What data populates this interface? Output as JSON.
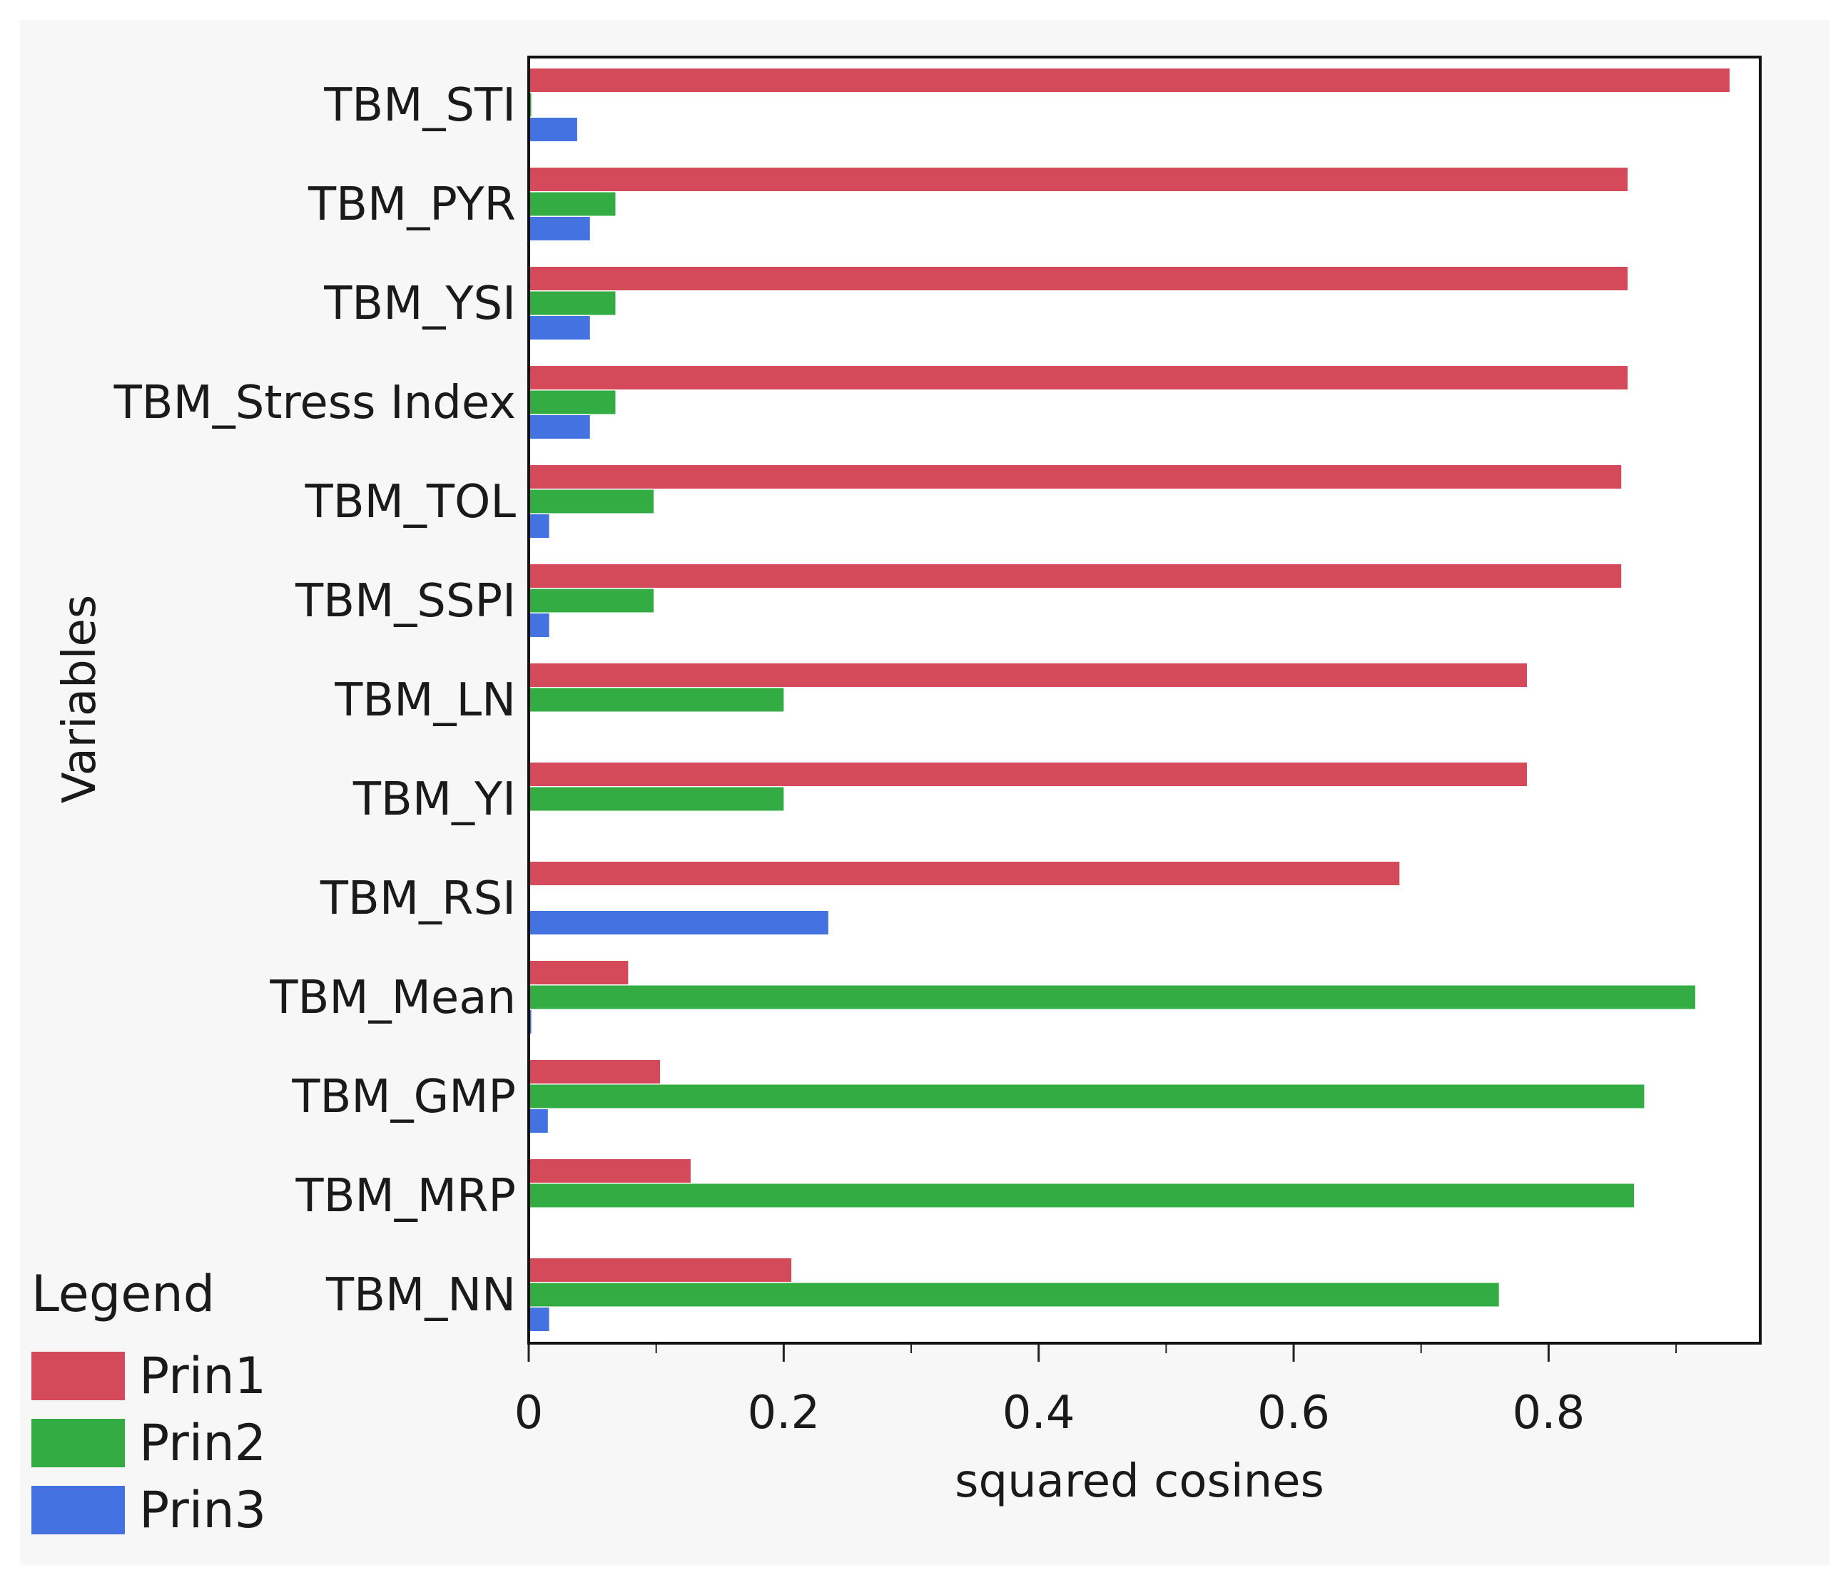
{
  "chart_data": {
    "type": "bar",
    "orientation": "horizontal",
    "title": "",
    "xlabel": "squared cosines",
    "ylabel": "Variables",
    "xlim": [
      0,
      0.966
    ],
    "xticks": [
      0,
      0.2,
      0.4,
      0.6,
      0.8
    ],
    "xtick_labels": [
      "0",
      "0.2",
      "0.4",
      "0.6",
      "0.8"
    ],
    "minor_ticks": [
      0.1,
      0.3,
      0.5,
      0.7,
      0.9
    ],
    "grid": false,
    "legend_position": "bottom-left",
    "categories": [
      "TBM_STI",
      "TBM_PYR",
      "TBM_YSI",
      "TBM_Stress Index",
      "TBM_TOL",
      "TBM_SSPI",
      "TBM_LN",
      "TBM_YI",
      "TBM_RSI",
      "TBM_Mean",
      "TBM_GMP",
      "TBM_MRP",
      "TBM_NN"
    ],
    "series": [
      {
        "name": "Prin1",
        "color": "#d44a5a",
        "values": [
          0.942,
          0.862,
          0.862,
          0.862,
          0.857,
          0.857,
          0.783,
          0.783,
          0.683,
          0.078,
          0.103,
          0.127,
          0.206
        ]
      },
      {
        "name": "Prin2",
        "color": "#34ac44",
        "values": [
          0.002,
          0.068,
          0.068,
          0.068,
          0.098,
          0.098,
          0.2,
          0.2,
          0.0,
          0.915,
          0.875,
          0.867,
          0.761
        ]
      },
      {
        "name": "Prin3",
        "color": "#4472e0",
        "values": [
          0.038,
          0.048,
          0.048,
          0.048,
          0.016,
          0.016,
          0.0,
          0.0,
          0.235,
          0.002,
          0.015,
          0.0,
          0.016
        ]
      }
    ]
  },
  "legend": {
    "title": "Legend",
    "items": [
      {
        "label": "Prin1",
        "color": "#d44a5a"
      },
      {
        "label": "Prin2",
        "color": "#34ac44"
      },
      {
        "label": "Prin3",
        "color": "#4472e0"
      }
    ]
  }
}
